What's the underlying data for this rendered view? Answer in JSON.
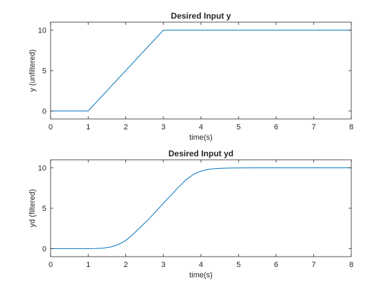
{
  "chart_data": [
    {
      "type": "line",
      "title": "Desired Input y",
      "xlabel": "time(s)",
      "ylabel": "y (unfiltered)",
      "xlim": [
        0,
        8
      ],
      "ylim": [
        -1,
        11
      ],
      "xticks": [
        0,
        1,
        2,
        3,
        4,
        5,
        6,
        7,
        8
      ],
      "yticks": [
        0,
        5,
        10
      ],
      "grid": false,
      "series": [
        {
          "color": "#0072BD",
          "x": [
            0,
            1,
            3,
            8
          ],
          "y": [
            0,
            0,
            10,
            10
          ]
        }
      ]
    },
    {
      "type": "line",
      "title": "Desired Input yd",
      "xlabel": "time(s)",
      "ylabel": "yd (filtered)",
      "xlim": [
        0,
        8
      ],
      "ylim": [
        -1,
        11
      ],
      "xticks": [
        0,
        1,
        2,
        3,
        4,
        5,
        6,
        7,
        8
      ],
      "yticks": [
        0,
        5,
        10
      ],
      "grid": false,
      "series": [
        {
          "color": "#0072BD",
          "x": [
            0,
            1.0,
            1.2,
            1.4,
            1.6,
            1.8,
            2.0,
            2.2,
            2.4,
            2.6,
            2.8,
            3.0,
            3.2,
            3.4,
            3.6,
            3.8,
            4.0,
            4.2,
            4.4,
            4.6,
            4.8,
            5.0,
            5.5,
            6.0,
            7.0,
            8.0
          ],
          "y": [
            0,
            0,
            0.01,
            0.05,
            0.2,
            0.5,
            1.0,
            1.8,
            2.7,
            3.6,
            4.6,
            5.6,
            6.6,
            7.6,
            8.5,
            9.2,
            9.6,
            9.82,
            9.92,
            9.96,
            9.98,
            9.99,
            10.0,
            10.0,
            10.0,
            10.0
          ]
        }
      ]
    }
  ]
}
